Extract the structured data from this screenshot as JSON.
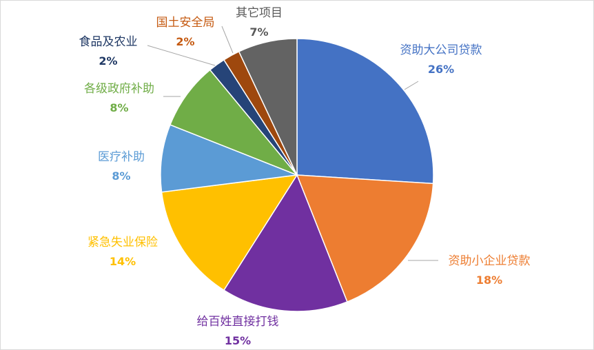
{
  "chart_data": {
    "type": "pie",
    "start_angle_deg": 0,
    "direction": "clockwise",
    "slices": [
      {
        "label": "资助大公司贷款",
        "value": 26,
        "value_label": "26%",
        "color": "#4472c4",
        "label_color": "#4472c4"
      },
      {
        "label": "资助小企业贷款",
        "value": 18,
        "value_label": "18%",
        "color": "#ed7d31",
        "label_color": "#ed7d31"
      },
      {
        "label": "给百姓直接打钱",
        "value": 15,
        "value_label": "15%",
        "color": "#7030a0",
        "label_color": "#7030a0"
      },
      {
        "label": "紧急失业保险",
        "value": 14,
        "value_label": "14%",
        "color": "#ffc000",
        "label_color": "#ffc000"
      },
      {
        "label": "医疗补助",
        "value": 8,
        "value_label": "8%",
        "color": "#5b9bd5",
        "label_color": "#5b9bd5"
      },
      {
        "label": "各级政府补助",
        "value": 8,
        "value_label": "8%",
        "color": "#70ad47",
        "label_color": "#70ad47"
      },
      {
        "label": "食品及农业",
        "value": 2,
        "value_label": "2%",
        "color": "#264478",
        "label_color": "#1f3864"
      },
      {
        "label": "国土安全局",
        "value": 2,
        "value_label": "2%",
        "color": "#9e480e",
        "label_color": "#c55a11"
      },
      {
        "label": "其它项目",
        "value": 7,
        "value_label": "7%",
        "color": "#636363",
        "label_color": "#595959"
      }
    ],
    "legend": "none",
    "data_labels": "outside with leader lines"
  },
  "style": {
    "leader_line_color": "#a6a6a6",
    "slice_border_color": "#ffffff"
  }
}
